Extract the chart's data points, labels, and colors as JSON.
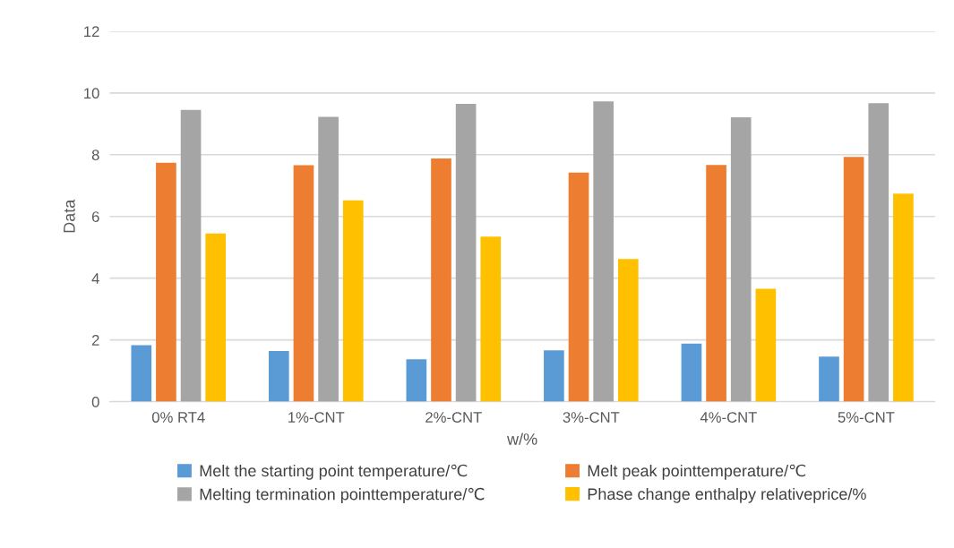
{
  "chart_data": {
    "type": "bar",
    "xlabel": "w/%",
    "ylabel": "Data",
    "categories": [
      "0% RT4",
      "1%-CNT",
      "2%-CNT",
      "3%-CNT",
      "4%-CNT",
      "5%-CNT"
    ],
    "series": [
      {
        "name": "Melt the starting point temperature/℃",
        "color": "#5b9bd5",
        "values": [
          1.83,
          1.64,
          1.37,
          1.66,
          1.88,
          1.46
        ]
      },
      {
        "name": "Melt peak pointtemperature/℃",
        "color": "#ed7d31",
        "values": [
          7.74,
          7.66,
          7.88,
          7.42,
          7.67,
          7.93
        ]
      },
      {
        "name": "Melting termination pointtemperature/℃",
        "color": "#a5a5a5",
        "values": [
          9.45,
          9.23,
          9.65,
          9.73,
          9.21,
          9.67
        ]
      },
      {
        "name": "Phase change enthalpy relativeprice/%",
        "color": "#ffc000",
        "values": [
          5.45,
          6.52,
          5.35,
          4.62,
          3.66,
          6.74
        ]
      }
    ],
    "ylim": [
      0,
      12
    ],
    "yticks": [
      0,
      2,
      4,
      6,
      8,
      10,
      12
    ],
    "grid": "y",
    "legend": "bottom"
  }
}
